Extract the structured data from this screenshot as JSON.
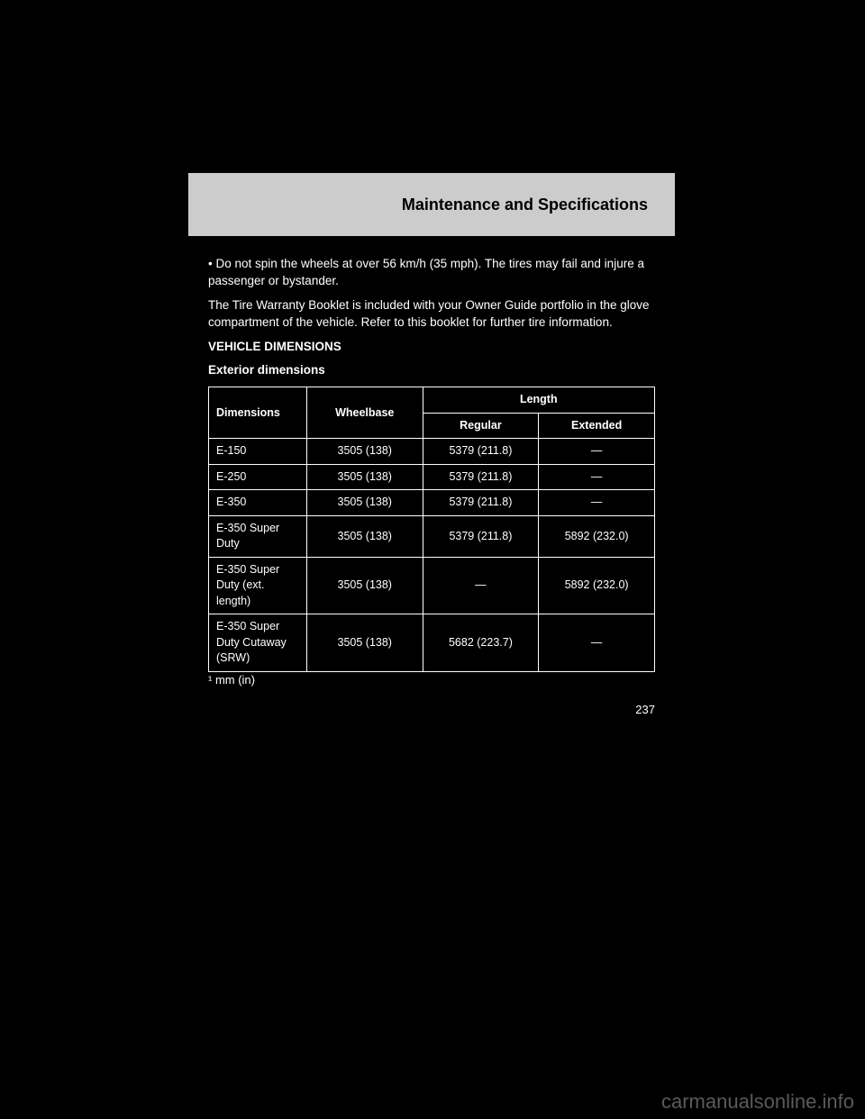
{
  "header": {
    "title": "Maintenance and Specifications"
  },
  "body": {
    "p1": "• Do not spin the wheels at over 56 km/h (35 mph). The tires may fail and injure a passenger or bystander.",
    "p2": "The Tire Warranty Booklet is included with your Owner Guide portfolio in the glove compartment of the vehicle. Refer to this booklet for further tire information.",
    "sectionTitle": "VEHICLE DIMENSIONS",
    "subTitle": "Exterior dimensions"
  },
  "table": {
    "headers": {
      "dim": "Dimensions",
      "wb": "Wheelbase",
      "len": "Length"
    },
    "row0": {
      "c0": "E-150",
      "c1": "3505 (138)"
    },
    "row1": {
      "c0": "E-250",
      "c1": "3505 (138)"
    },
    "row2": {
      "c0": "E-350",
      "c1": "3505 (138)"
    },
    "row3": {
      "c0": "E-350 Super Duty",
      "c1": "3505 (138)"
    },
    "row4": {
      "c0": "E-350 Super Duty (ext. length)",
      "c1": "3505 (138)"
    },
    "row5": {
      "c0": "E-350 Super Duty Cutaway (SRW)",
      "c1": "3505 (138)"
    },
    "lenRegLabel": "Regular",
    "lenExtLabel": "Extended",
    "reg": {
      "r0": "5379 (211.8)",
      "r1": "5379 (211.8)",
      "r2": "5379 (211.8)",
      "r3": "5379 (211.8)",
      "r4": "—"
    },
    "ext": {
      "r0": "—",
      "r1": "—",
      "r2": "—",
      "r3": "5892 (232.0)",
      "r4": "5892 (232.0)"
    },
    "sr": {
      "reg": "5682 (223.7)",
      "ext": "—"
    }
  },
  "footnote": "¹ mm (in)",
  "pageNumber": "237",
  "watermark": "carmanualsonline.info"
}
